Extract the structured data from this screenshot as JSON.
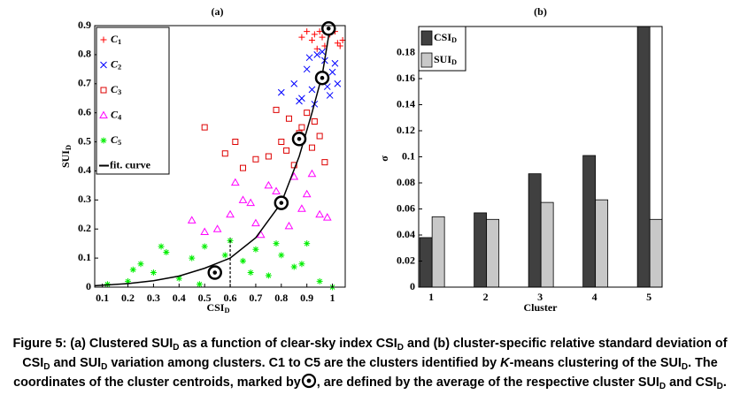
{
  "chart_data": [
    {
      "type": "scatter",
      "title": "(a)",
      "xlabel": "CSID",
      "ylabel": "SUID",
      "xlim": [
        0.07,
        1.05
      ],
      "ylim": [
        0,
        0.9
      ],
      "xticks": [
        0.1,
        0.2,
        0.3,
        0.4,
        0.5,
        0.6,
        0.7,
        0.8,
        0.9,
        1
      ],
      "yticks": [
        0,
        0.1,
        0.2,
        0.3,
        0.4,
        0.5,
        0.6,
        0.7,
        0.8,
        0.9
      ],
      "legend": "upper left",
      "grid": false,
      "series": [
        {
          "name": "C1",
          "type": "scatter",
          "marker": "plus",
          "color": "#ff0000",
          "x": [
            0.92,
            0.95,
            0.97,
            0.99,
            1.0,
            1.02,
            0.94,
            0.96,
            0.98,
            1.01,
            1.03,
            0.93,
            0.88,
            0.9,
            1.04
          ],
          "values": [
            0.85,
            0.88,
            0.83,
            0.87,
            0.9,
            0.84,
            0.82,
            0.86,
            0.89,
            0.88,
            0.83,
            0.87,
            0.86,
            0.88,
            0.85
          ]
        },
        {
          "name": "C2",
          "type": "scatter",
          "marker": "cross",
          "color": "#0000ff",
          "x": [
            0.85,
            0.88,
            0.9,
            0.92,
            0.94,
            0.95,
            0.97,
            0.99,
            1.0,
            1.02,
            0.93,
            0.96,
            0.98,
            1.01,
            0.87,
            0.91,
            0.8
          ],
          "values": [
            0.7,
            0.65,
            0.75,
            0.68,
            0.8,
            0.72,
            0.78,
            0.66,
            0.74,
            0.7,
            0.63,
            0.81,
            0.69,
            0.77,
            0.64,
            0.79,
            0.67
          ]
        },
        {
          "name": "C3",
          "type": "scatter",
          "marker": "square",
          "color": "#dd0000",
          "x": [
            0.75,
            0.8,
            0.83,
            0.85,
            0.88,
            0.9,
            0.92,
            0.95,
            0.7,
            0.78,
            0.82,
            0.87,
            0.93,
            0.97,
            0.65,
            0.5,
            0.58,
            0.62
          ],
          "values": [
            0.45,
            0.5,
            0.58,
            0.42,
            0.55,
            0.6,
            0.48,
            0.52,
            0.44,
            0.61,
            0.47,
            0.53,
            0.57,
            0.43,
            0.41,
            0.55,
            0.46,
            0.5
          ]
        },
        {
          "name": "C4",
          "type": "scatter",
          "marker": "triangle",
          "color": "#ff00ff",
          "x": [
            0.55,
            0.6,
            0.65,
            0.7,
            0.75,
            0.8,
            0.85,
            0.9,
            0.95,
            0.72,
            0.78,
            0.83,
            0.88,
            0.5,
            0.62,
            0.68,
            0.92,
            0.98,
            0.45
          ],
          "values": [
            0.2,
            0.25,
            0.3,
            0.22,
            0.35,
            0.28,
            0.38,
            0.32,
            0.25,
            0.18,
            0.33,
            0.21,
            0.27,
            0.19,
            0.36,
            0.29,
            0.39,
            0.24,
            0.23
          ]
        },
        {
          "name": "C5",
          "type": "scatter",
          "marker": "star",
          "color": "#00ee00",
          "x": [
            0.12,
            0.2,
            0.25,
            0.3,
            0.35,
            0.4,
            0.45,
            0.5,
            0.55,
            0.6,
            0.65,
            0.7,
            0.75,
            0.8,
            0.85,
            0.9,
            0.95,
            1.0,
            0.33,
            0.48,
            0.58,
            0.68,
            0.78,
            0.88,
            0.22
          ],
          "values": [
            0.01,
            0.02,
            0.08,
            0.05,
            0.12,
            0.03,
            0.1,
            0.14,
            0.06,
            0.16,
            0.09,
            0.13,
            0.04,
            0.11,
            0.07,
            0.15,
            0.02,
            0.0,
            0.14,
            0.01,
            0.11,
            0.05,
            0.15,
            0.08,
            0.06
          ]
        },
        {
          "name": "fit. curve",
          "type": "line",
          "color": "#000000",
          "x": [
            0.07,
            0.2,
            0.3,
            0.4,
            0.5,
            0.6,
            0.7,
            0.8,
            0.87,
            0.92,
            0.96,
            0.99
          ],
          "values": [
            0.005,
            0.012,
            0.022,
            0.038,
            0.065,
            0.1,
            0.17,
            0.29,
            0.45,
            0.6,
            0.73,
            0.89
          ]
        }
      ],
      "centroids": {
        "x": [
          0.54,
          0.8,
          0.87,
          0.96,
          0.985
        ],
        "values": [
          0.05,
          0.29,
          0.51,
          0.72,
          0.89
        ]
      },
      "threshold_line": {
        "x": 0.6,
        "values": [
          0,
          0.17
        ]
      }
    },
    {
      "type": "bar",
      "title": "(b)",
      "xlabel": "Cluster",
      "ylabel": "σ",
      "categories": [
        "1",
        "2",
        "3",
        "4",
        "5"
      ],
      "ylim": [
        0,
        0.2
      ],
      "yticks": [
        0,
        0.02,
        0.04,
        0.06,
        0.08,
        0.1,
        0.12,
        0.14,
        0.16,
        0.18
      ],
      "legend": "upper left",
      "grid": false,
      "series": [
        {
          "name": "CSID",
          "color": "#404040",
          "values": [
            0.038,
            0.057,
            0.087,
            0.101,
            0.2
          ]
        },
        {
          "name": "SUID",
          "color": "#c8c8c8",
          "values": [
            0.054,
            0.052,
            0.065,
            0.067,
            0.052
          ]
        }
      ]
    }
  ],
  "caption": {
    "runs": [
      {
        "text": "Figure 5: (a) Clustered SUI"
      },
      {
        "text": "D",
        "style": "sub"
      },
      {
        "text": " as a function of clear-sky index CSI"
      },
      {
        "text": "D",
        "style": "sub"
      },
      {
        "text": " and (b) cluster-specific relative standard deviation of CSI"
      },
      {
        "text": "D",
        "style": "sub"
      },
      {
        "text": " and SUI"
      },
      {
        "text": "D",
        "style": "sub"
      },
      {
        "text": " variation among clusters. C1 to C5 are the clusters identified by "
      },
      {
        "text": "K",
        "style": "italic"
      },
      {
        "text": "-means clustering of the SUI"
      },
      {
        "text": "D",
        "style": "sub"
      },
      {
        "text": ". The coordinates of the cluster centroids, marked by"
      },
      {
        "style": "centroid"
      },
      {
        "text": ", are defined by the average of the respective cluster SUI"
      },
      {
        "text": "D",
        "style": "sub"
      },
      {
        "text": " and CSI"
      },
      {
        "text": "D",
        "style": "sub"
      },
      {
        "text": "."
      }
    ]
  }
}
